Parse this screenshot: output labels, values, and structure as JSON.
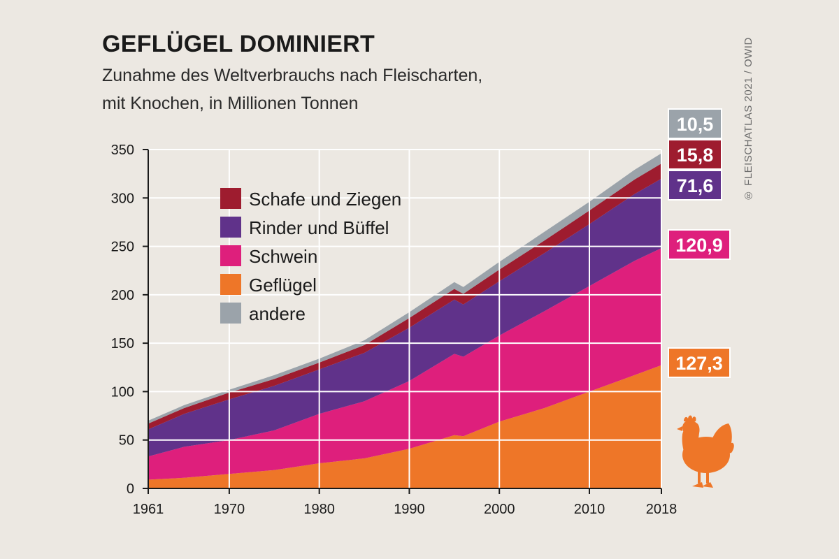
{
  "header": {
    "title": "GEFLÜGEL DOMINIERT",
    "subtitle_line1": "Zunahme des Weltverbrauchs nach Fleischarten,",
    "subtitle_line2": "mit Knochen, in Millionen Tonnen"
  },
  "credit": "® FLEISCHATLAS 2021 / OWID",
  "icons": {
    "chicken": "chicken-icon"
  },
  "chart_data": {
    "type": "area",
    "stacked": true,
    "x": [
      1961,
      1965,
      1970,
      1975,
      1980,
      1985,
      1990,
      1995,
      1996,
      2000,
      2005,
      2010,
      2015,
      2018
    ],
    "xticks": [
      "1961",
      "1970",
      "1980",
      "1990",
      "2000",
      "2010",
      "2018"
    ],
    "yticks": [
      "0",
      "50",
      "100",
      "150",
      "200",
      "250",
      "300",
      "350"
    ],
    "ylim": [
      0,
      350
    ],
    "xlim": [
      1961,
      2018
    ],
    "grid": true,
    "legend_position": "upper-left inside plot",
    "series": [
      {
        "name": "Geflügel",
        "color": "#ee7628",
        "values": [
          9,
          11,
          15,
          19,
          26,
          31,
          41,
          55,
          54,
          69,
          83,
          100,
          117,
          127.3
        ],
        "end_label": "127,3"
      },
      {
        "name": "Schwein",
        "color": "#de1f7c",
        "values": [
          24,
          32,
          35,
          41,
          51,
          59,
          70,
          84,
          82,
          89,
          100,
          109,
          118,
          120.9
        ],
        "end_label": "120,9"
      },
      {
        "name": "Rinder und Büffel",
        "color": "#60328a",
        "values": [
          28,
          34,
          42,
          46,
          46,
          50,
          55,
          56,
          54,
          56,
          60,
          64,
          69,
          71.6
        ],
        "end_label": "71,6"
      },
      {
        "name": "Schafe und Ziegen",
        "color": "#9e1c2f",
        "values": [
          6,
          6,
          7,
          7,
          7,
          8,
          10,
          11,
          11,
          12,
          13,
          14,
          15,
          15.8
        ],
        "end_label": "15,8"
      },
      {
        "name": "andere",
        "color": "#9ba3aa",
        "values": [
          3,
          3,
          3,
          4,
          4,
          5,
          6,
          7,
          7,
          8,
          9,
          9,
          10,
          10.5
        ],
        "end_label": "10,5"
      }
    ],
    "legend_order": [
      "Schafe und Ziegen",
      "Rinder und Büffel",
      "Schwein",
      "Geflügel",
      "andere"
    ]
  }
}
